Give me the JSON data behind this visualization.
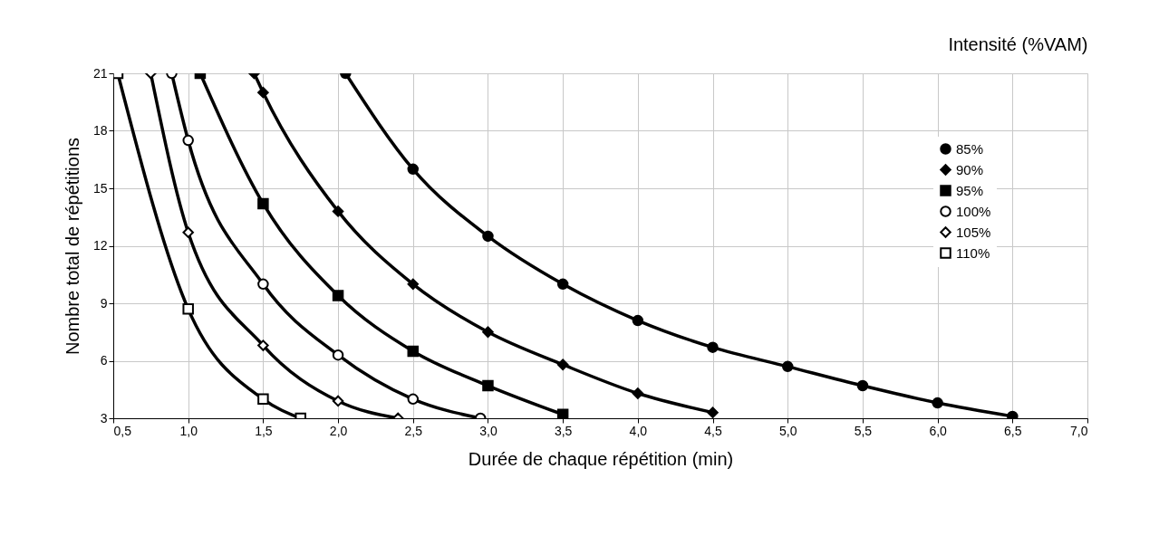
{
  "chart_data": {
    "type": "line",
    "legend_title": "Intensité (%VAM)",
    "xlabel": "Durée de chaque répétition (min)",
    "ylabel": "Nombre total de répétitions",
    "xlim": [
      0.5,
      7.0
    ],
    "ylim": [
      3,
      21
    ],
    "xticks": [
      {
        "value": 0.5,
        "label": "0,5"
      },
      {
        "value": 1.0,
        "label": "1,0"
      },
      {
        "value": 1.5,
        "label": "1,5"
      },
      {
        "value": 2.0,
        "label": "2,0"
      },
      {
        "value": 2.5,
        "label": "2,5"
      },
      {
        "value": 3.0,
        "label": "3,0"
      },
      {
        "value": 3.5,
        "label": "3,5"
      },
      {
        "value": 4.0,
        "label": "4,0"
      },
      {
        "value": 4.5,
        "label": "4,5"
      },
      {
        "value": 5.0,
        "label": "5,0"
      },
      {
        "value": 5.5,
        "label": "5,5"
      },
      {
        "value": 6.0,
        "label": "6,0"
      },
      {
        "value": 6.5,
        "label": "6,5"
      },
      {
        "value": 7.0,
        "label": "7,0"
      }
    ],
    "yticks": [
      3,
      6,
      9,
      12,
      15,
      18,
      21
    ],
    "grid": true,
    "legend": "right",
    "line_style": "solid",
    "series": [
      {
        "name": "85%",
        "color": "#000000",
        "marker": "circle",
        "x": [
          2.05,
          2.5,
          3.0,
          3.5,
          4.0,
          4.5,
          5.0,
          5.5,
          6.0,
          6.5
        ],
        "values": [
          21,
          16.0,
          12.5,
          10.0,
          8.1,
          6.7,
          5.7,
          4.7,
          3.8,
          3.1
        ]
      },
      {
        "name": "90%",
        "color": "#000000",
        "marker": "diamond",
        "x": [
          1.44,
          1.5,
          2.0,
          2.5,
          3.0,
          3.5,
          4.0,
          4.5
        ],
        "values": [
          21,
          20.0,
          13.8,
          10.0,
          7.5,
          5.8,
          4.3,
          3.3
        ]
      },
      {
        "name": "95%",
        "color": "#000000",
        "marker": "square",
        "x": [
          1.08,
          1.5,
          2.0,
          2.5,
          3.0,
          3.5
        ],
        "values": [
          21,
          14.2,
          9.4,
          6.5,
          4.7,
          3.2
        ]
      },
      {
        "name": "100%",
        "color": "#000000",
        "marker": "circle",
        "x": [
          0.89,
          1.0,
          1.5,
          2.0,
          2.5,
          2.95
        ],
        "values": [
          21,
          17.5,
          10.0,
          6.3,
          4.0,
          3
        ]
      },
      {
        "name": "105%",
        "color": "#000000",
        "marker": "diamond",
        "x": [
          0.75,
          1.0,
          1.5,
          2.0,
          2.4
        ],
        "values": [
          21,
          12.7,
          6.8,
          3.9,
          3
        ]
      },
      {
        "name": "110%",
        "color": "#000000",
        "marker": "square",
        "x": [
          0.53,
          1.0,
          1.5,
          1.75
        ],
        "values": [
          21,
          8.7,
          4.0,
          3
        ]
      }
    ]
  }
}
